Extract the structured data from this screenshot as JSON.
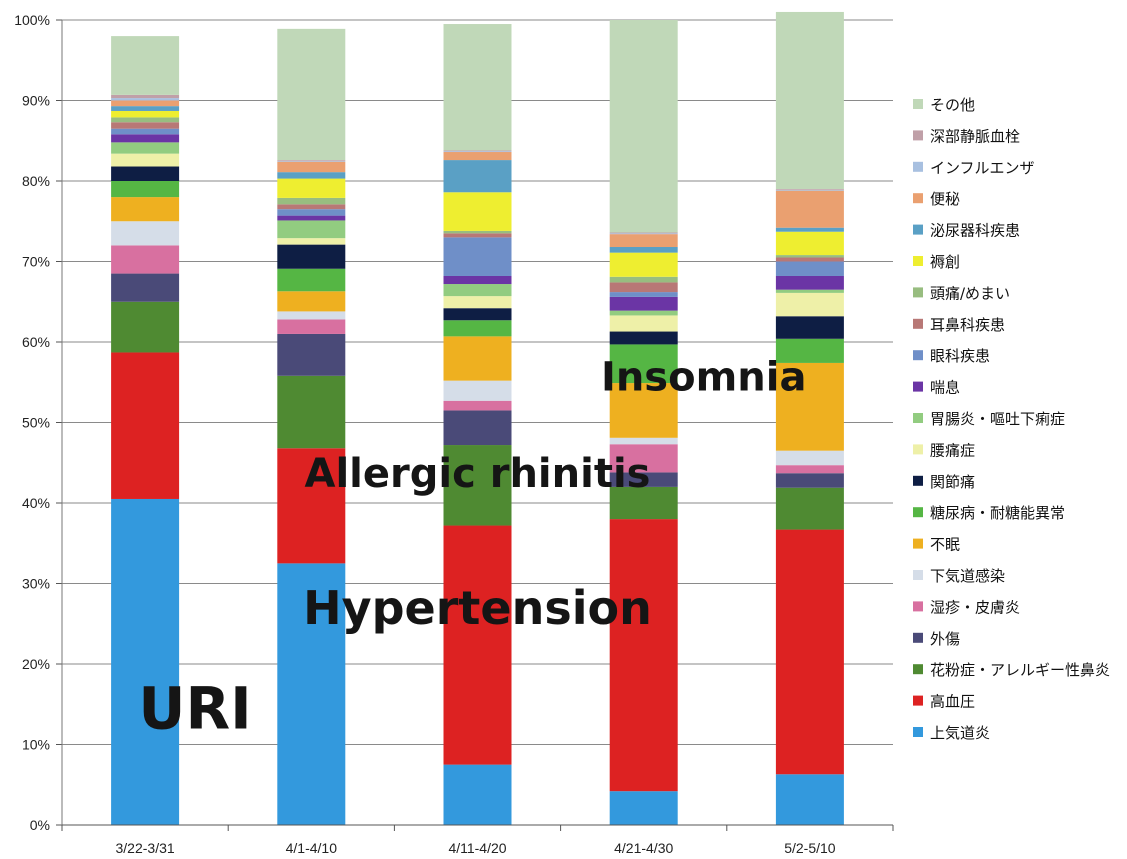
{
  "chart_data": {
    "type": "bar",
    "stacked": true,
    "percent": true,
    "ylim": [
      0,
      100
    ],
    "yticks": [
      "0%",
      "10%",
      "20%",
      "30%",
      "40%",
      "50%",
      "60%",
      "70%",
      "80%",
      "90%",
      "100%"
    ],
    "grid": true,
    "legend_position": "right",
    "categories": [
      "3/22-3/31",
      "4/1-4/10",
      "4/11-4/20",
      "4/21-4/30",
      "5/2-5/10"
    ],
    "series": [
      {
        "name": "上気道炎",
        "color": "#3399dd",
        "values": [
          40.5,
          32.5,
          7.5,
          4.2,
          6.3
        ]
      },
      {
        "name": "高血圧",
        "color": "#dd2222",
        "values": [
          18.2,
          14.3,
          29.7,
          33.8,
          30.4
        ]
      },
      {
        "name": "花粉症・アレルギー性鼻炎",
        "color": "#4f8a32",
        "values": [
          6.3,
          9.0,
          10.0,
          4.0,
          5.2
        ]
      },
      {
        "name": "外傷",
        "color": "#4a4a78",
        "values": [
          3.5,
          5.2,
          4.3,
          1.8,
          1.8
        ]
      },
      {
        "name": "湿疹・皮膚炎",
        "color": "#d870a0",
        "values": [
          3.5,
          1.8,
          1.2,
          3.5,
          1.0
        ]
      },
      {
        "name": "下気道感染",
        "color": "#d5dde8",
        "values": [
          3.0,
          1.0,
          2.5,
          0.8,
          1.8
        ]
      },
      {
        "name": "不眠",
        "color": "#eeb020",
        "values": [
          3.0,
          2.5,
          5.5,
          6.8,
          10.9
        ]
      },
      {
        "name": "糖尿病・耐糖能異常",
        "color": "#55b644",
        "values": [
          2.0,
          2.8,
          2.0,
          4.8,
          3.0
        ]
      },
      {
        "name": "関節痛",
        "color": "#0e1e44",
        "values": [
          1.8,
          3.0,
          1.5,
          1.6,
          2.8
        ]
      },
      {
        "name": "腰痛症",
        "color": "#eef0a8",
        "values": [
          1.6,
          0.8,
          1.5,
          2.0,
          2.9
        ]
      },
      {
        "name": "胃腸炎・嘔吐下痢症",
        "color": "#92cc80",
        "values": [
          1.4,
          2.2,
          1.5,
          0.6,
          0.4
        ]
      },
      {
        "name": "喘息",
        "color": "#6b35a5",
        "values": [
          1.0,
          0.6,
          1.0,
          1.7,
          1.7
        ]
      },
      {
        "name": "眼科疾患",
        "color": "#6f8fc8",
        "values": [
          0.7,
          0.8,
          4.8,
          0.6,
          1.8
        ]
      },
      {
        "name": "耳鼻科疾患",
        "color": "#b87876",
        "values": [
          0.8,
          0.6,
          0.5,
          1.2,
          0.5
        ]
      },
      {
        "name": "頭痛/めまい",
        "color": "#98bd80",
        "values": [
          0.6,
          0.8,
          0.3,
          0.7,
          0.3
        ]
      },
      {
        "name": "褥創",
        "color": "#eeee30",
        "values": [
          0.8,
          2.4,
          4.8,
          3.0,
          2.9
        ]
      },
      {
        "name": "泌尿器科疾患",
        "color": "#5aa0c5",
        "values": [
          0.6,
          0.8,
          4.0,
          0.7,
          0.5
        ]
      },
      {
        "name": "便秘",
        "color": "#eaa070",
        "values": [
          0.7,
          1.3,
          1.0,
          1.6,
          4.6
        ]
      },
      {
        "name": "インフルエンザ",
        "color": "#a8c0e0",
        "values": [
          0.3,
          0.1,
          0.1,
          0.1,
          0.1
        ]
      },
      {
        "name": "深部静脈血栓",
        "color": "#c0a0a8",
        "values": [
          0.4,
          0.1,
          0.1,
          0.1,
          0.1
        ]
      },
      {
        "name": "その他",
        "color": "#c0d8b8",
        "values": [
          7.3,
          16.3,
          15.7,
          26.4,
          22.0
        ]
      }
    ],
    "annotations": [
      {
        "text": "URI",
        "category": "3/22-3/31",
        "y": 12
      },
      {
        "text": "Hypertension",
        "category": "4/11-4/20",
        "y": 25
      },
      {
        "text": "Allergic rhinitis",
        "category": "4/11-4/20",
        "y": 42
      },
      {
        "text": "Insomnia",
        "category": "4/21-4/30",
        "y": 54
      }
    ]
  }
}
